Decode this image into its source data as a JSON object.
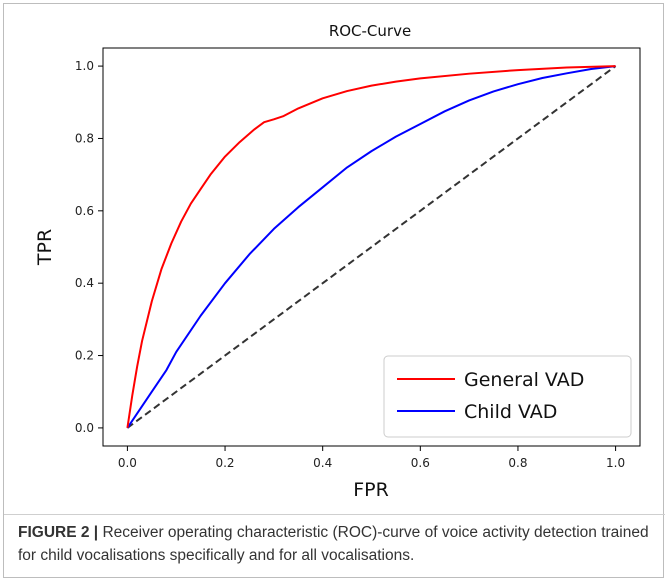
{
  "figure": {
    "caption_label": "FIGURE 2 |",
    "caption_text": " Receiver operating characteristic (ROC)-curve of voice activity detection trained for child vocalisations specifically and for all vocalisations."
  },
  "chart_data": {
    "type": "line",
    "title": "ROC-Curve",
    "xlabel": "FPR",
    "ylabel": "TPR",
    "xlim": [
      -0.05,
      1.05
    ],
    "ylim": [
      -0.05,
      1.05
    ],
    "xticks": [
      0.0,
      0.2,
      0.4,
      0.6,
      0.8,
      1.0
    ],
    "yticks": [
      0.0,
      0.2,
      0.4,
      0.6,
      0.8,
      1.0
    ],
    "xtick_labels": [
      "0.0",
      "0.2",
      "0.4",
      "0.6",
      "0.8",
      "1.0"
    ],
    "ytick_labels": [
      "0.0",
      "0.2",
      "0.4",
      "0.6",
      "0.8",
      "1.0"
    ],
    "grid": false,
    "legend_position": "lower-right",
    "series": [
      {
        "name": "General VAD",
        "color": "#ff0000",
        "style": "solid",
        "x": [
          0.0,
          0.01,
          0.02,
          0.03,
          0.05,
          0.07,
          0.09,
          0.11,
          0.13,
          0.15,
          0.17,
          0.2,
          0.23,
          0.26,
          0.28,
          0.3,
          0.32,
          0.35,
          0.4,
          0.45,
          0.5,
          0.55,
          0.6,
          0.7,
          0.8,
          0.9,
          1.0
        ],
        "y": [
          0.0,
          0.09,
          0.17,
          0.24,
          0.35,
          0.44,
          0.51,
          0.57,
          0.62,
          0.66,
          0.7,
          0.75,
          0.79,
          0.825,
          0.845,
          0.853,
          0.862,
          0.883,
          0.911,
          0.931,
          0.946,
          0.957,
          0.966,
          0.979,
          0.989,
          0.996,
          1.0
        ]
      },
      {
        "name": "Child VAD",
        "color": "#0000ff",
        "style": "solid",
        "x": [
          0.0,
          0.02,
          0.05,
          0.08,
          0.1,
          0.15,
          0.2,
          0.25,
          0.3,
          0.35,
          0.4,
          0.45,
          0.5,
          0.55,
          0.6,
          0.65,
          0.7,
          0.75,
          0.8,
          0.85,
          0.9,
          0.95,
          1.0
        ],
        "y": [
          0.0,
          0.04,
          0.1,
          0.16,
          0.21,
          0.31,
          0.4,
          0.48,
          0.55,
          0.61,
          0.665,
          0.72,
          0.765,
          0.805,
          0.84,
          0.875,
          0.905,
          0.93,
          0.95,
          0.967,
          0.98,
          0.992,
          1.0
        ]
      },
      {
        "name": "",
        "color": "#333333",
        "style": "dashed",
        "x": [
          0.0,
          1.0
        ],
        "y": [
          0.0,
          1.0
        ]
      }
    ]
  }
}
